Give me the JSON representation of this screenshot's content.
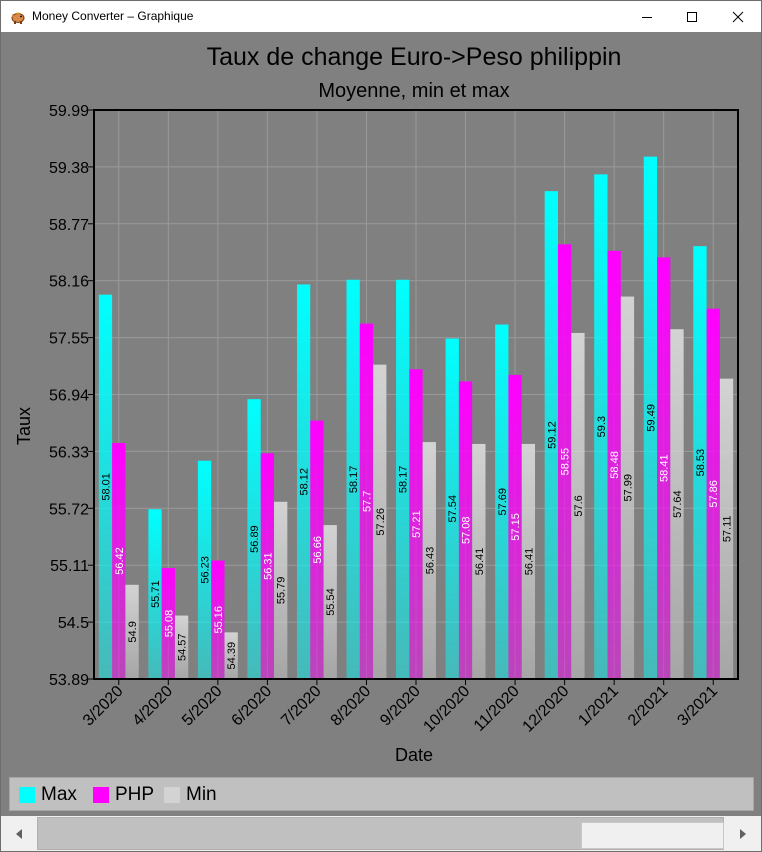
{
  "window": {
    "title": "Money Converter – Graphique",
    "icon": "piggy-bank-icon"
  },
  "chart_data": {
    "type": "bar",
    "title": "Taux de change Euro->Peso philippin",
    "subtitle": "Moyenne, min et max",
    "xlabel": "Date",
    "ylabel": "Taux",
    "ylim": [
      53.89,
      59.99
    ],
    "yticks": [
      "53.89",
      "54.5",
      "55.11",
      "55.72",
      "56.33",
      "56.94",
      "57.55",
      "58.16",
      "58.77",
      "59.38",
      "59.99"
    ],
    "grid": true,
    "legend_position": "bottom",
    "categories": [
      "3/2020",
      "4/2020",
      "5/2020",
      "6/2020",
      "7/2020",
      "8/2020",
      "9/2020",
      "10/2020",
      "11/2020",
      "12/2020",
      "1/2021",
      "2/2021",
      "3/2021"
    ],
    "series": [
      {
        "name": "Max",
        "color": "#00ffff",
        "label_color": "#000000",
        "values": [
          58.01,
          55.71,
          56.23,
          56.89,
          58.12,
          58.17,
          58.17,
          57.54,
          57.69,
          59.12,
          59.3,
          59.49,
          58.53
        ]
      },
      {
        "name": "PHP",
        "color": "#ff00ff",
        "label_color": "#ffffff",
        "values": [
          56.42,
          55.08,
          55.16,
          56.31,
          56.66,
          57.7,
          57.21,
          57.08,
          57.15,
          58.55,
          58.48,
          58.41,
          57.86
        ]
      },
      {
        "name": "Min",
        "color": "#d3d3d3",
        "label_color": "#000000",
        "values": [
          54.9,
          54.57,
          54.39,
          55.79,
          55.54,
          57.26,
          56.43,
          56.41,
          56.41,
          57.6,
          57.99,
          57.64,
          57.11
        ]
      }
    ]
  },
  "colors": {
    "background": "#808080",
    "plot_border": "#000000",
    "gridline": "#9a9a9a",
    "legend_background": "#c0c0c0"
  }
}
